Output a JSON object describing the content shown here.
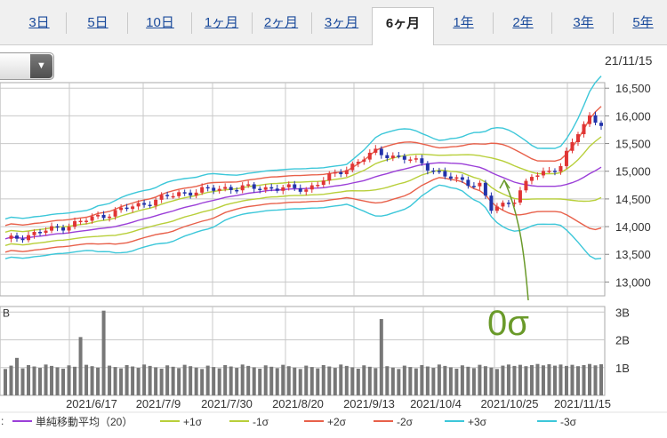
{
  "tabs": [
    {
      "label": "3日",
      "active": false
    },
    {
      "label": "5日",
      "active": false
    },
    {
      "label": "10日",
      "active": false
    },
    {
      "label": "1ヶ月",
      "active": false
    },
    {
      "label": "2ヶ月",
      "active": false
    },
    {
      "label": "3ヶ月",
      "active": false
    },
    {
      "label": "6ヶ月",
      "active": true
    },
    {
      "label": "1年",
      "active": false
    },
    {
      "label": "2年",
      "active": false
    },
    {
      "label": "3年",
      "active": false
    },
    {
      "label": "5年",
      "active": false
    }
  ],
  "selector": {
    "value": "",
    "icon": "chevron-down-icon"
  },
  "chart_date": "21/11/15",
  "chart_data": {
    "type": "line",
    "price_axis": {
      "min": 12750,
      "max": 16600,
      "ticks": [
        "13,000",
        "13,500",
        "14,000",
        "14,500",
        "15,000",
        "15,500",
        "16,000",
        "16,500"
      ]
    },
    "volume_axis": {
      "ticks": [
        "1B",
        "2B",
        "3B"
      ],
      "left_label": "B"
    },
    "x_ticks": [
      "2021/6/17",
      "2021/7/9",
      "2021/7/30",
      "2021/8/20",
      "2021/9/13",
      "2021/10/4",
      "2021/10/25",
      "2021/11/15"
    ],
    "annotation": "0σ",
    "colors": {
      "sma": "#9b3fd8",
      "s1": "#b8cf3a",
      "s2": "#e8604a",
      "s3": "#3cc7d9",
      "up": "#e03535",
      "down": "#2233aa",
      "volume": "#777777"
    },
    "legend": [
      {
        "label": "単純移動平均（20）",
        "color": "#9b3fd8"
      },
      {
        "label": "+1σ",
        "color": "#b8cf3a"
      },
      {
        "label": "-1σ",
        "color": "#b8cf3a"
      },
      {
        "label": "+2σ",
        "color": "#e8604a"
      },
      {
        "label": "-2σ",
        "color": "#e8604a"
      },
      {
        "label": "+3σ",
        "color": "#3cc7d9"
      },
      {
        "label": "-3σ",
        "color": "#3cc7d9"
      }
    ]
  }
}
